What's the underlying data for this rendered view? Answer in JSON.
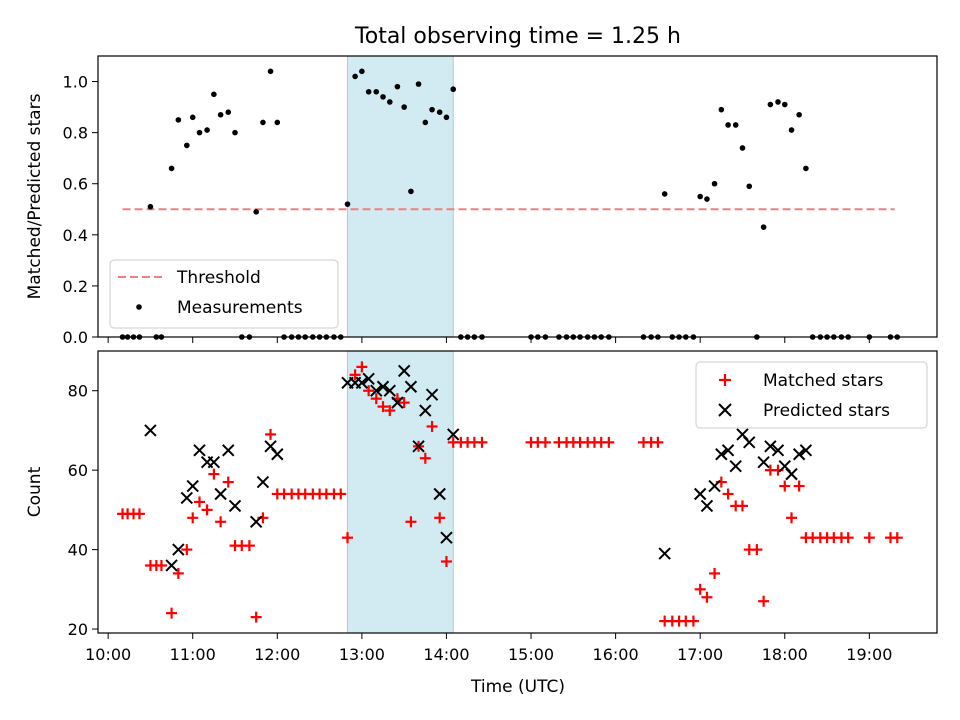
{
  "figure_title": "Total observing time = 1.25 h",
  "colors": {
    "threshold": "#f08080",
    "measurement": "#000000",
    "matched": "#ff0000",
    "predicted": "#000000",
    "shade": "#add8e6"
  },
  "chart_data": [
    {
      "type": "scatter",
      "ylabel": "Matched/Predicted stars",
      "xlabel": "",
      "xlim": [
        9.88,
        19.8
      ],
      "ylim": [
        0.0,
        1.1
      ],
      "x_ticks": [
        10,
        11,
        12,
        13,
        14,
        15,
        16,
        17,
        18,
        19
      ],
      "y_ticks": [
        0.0,
        0.2,
        0.4,
        0.6,
        0.8,
        1.0
      ],
      "y_tick_labels": [
        "0.0",
        "0.2",
        "0.4",
        "0.6",
        "0.8",
        "1.0"
      ],
      "shaded_span": [
        12.83,
        14.08
      ],
      "legend_position": "lower-left",
      "threshold": {
        "name": "Threshold",
        "value": 0.5,
        "x_range": [
          10.17,
          19.3
        ]
      },
      "series": [
        {
          "name": "Measurements",
          "x": [
            10.17,
            10.23,
            10.3,
            10.37,
            10.5,
            10.57,
            10.63,
            10.75,
            10.83,
            10.93,
            11.0,
            11.08,
            11.17,
            11.25,
            11.33,
            11.42,
            11.5,
            11.58,
            11.67,
            11.75,
            11.83,
            11.92,
            12.0,
            12.08,
            12.17,
            12.25,
            12.33,
            12.42,
            12.5,
            12.58,
            12.67,
            12.75,
            12.83,
            12.92,
            13.0,
            13.08,
            13.17,
            13.25,
            13.33,
            13.42,
            13.5,
            13.58,
            13.67,
            13.75,
            13.83,
            13.92,
            14.0,
            14.08,
            14.17,
            14.25,
            14.33,
            14.42,
            15.0,
            15.08,
            15.17,
            15.33,
            15.42,
            15.5,
            15.58,
            15.67,
            15.75,
            15.83,
            15.92,
            16.33,
            16.42,
            16.5,
            16.58,
            16.67,
            16.75,
            16.83,
            16.92,
            17.0,
            17.08,
            17.17,
            17.25,
            17.33,
            17.42,
            17.5,
            17.58,
            17.67,
            17.75,
            17.83,
            17.92,
            18.0,
            18.08,
            18.17,
            18.25,
            18.33,
            18.42,
            18.5,
            18.58,
            18.67,
            18.75,
            19.0,
            19.25,
            19.33
          ],
          "y": [
            0.0,
            0.0,
            0.0,
            0.0,
            0.51,
            0.0,
            0.0,
            0.66,
            0.85,
            0.75,
            0.86,
            0.8,
            0.81,
            0.95,
            0.87,
            0.88,
            0.8,
            0.0,
            0.0,
            0.49,
            0.84,
            1.04,
            0.84,
            0.0,
            0.0,
            0.0,
            0.0,
            0.0,
            0.0,
            0.0,
            0.0,
            0.0,
            0.52,
            1.02,
            1.04,
            0.96,
            0.96,
            0.94,
            0.92,
            0.98,
            0.9,
            0.57,
            0.99,
            0.84,
            0.89,
            0.88,
            0.86,
            0.97,
            0.0,
            0.0,
            0.0,
            0.0,
            0.0,
            0.0,
            0.0,
            0.0,
            0.0,
            0.0,
            0.0,
            0.0,
            0.0,
            0.0,
            0.0,
            0.0,
            0.0,
            0.0,
            0.56,
            0.0,
            0.0,
            0.0,
            0.0,
            0.55,
            0.54,
            0.6,
            0.89,
            0.83,
            0.83,
            0.74,
            0.59,
            0.0,
            0.43,
            0.91,
            0.92,
            0.91,
            0.81,
            0.87,
            0.66,
            0.0,
            0.0,
            0.0,
            0.0,
            0.0,
            0.0,
            0.0,
            0.0,
            0.0
          ]
        }
      ]
    },
    {
      "type": "scatter",
      "ylabel": "Count",
      "xlabel": "Time (UTC)",
      "xlim": [
        9.88,
        19.8
      ],
      "ylim": [
        19,
        90
      ],
      "x_ticks": [
        10,
        11,
        12,
        13,
        14,
        15,
        16,
        17,
        18,
        19
      ],
      "x_tick_labels": [
        "10:00",
        "11:00",
        "12:00",
        "13:00",
        "14:00",
        "15:00",
        "16:00",
        "17:00",
        "18:00",
        "19:00"
      ],
      "y_ticks": [
        20,
        40,
        60,
        80
      ],
      "y_tick_labels": [
        "20",
        "40",
        "60",
        "80"
      ],
      "shaded_span": [
        12.83,
        14.08
      ],
      "legend_position": "top-right",
      "series": [
        {
          "name": "Matched stars",
          "marker": "plus",
          "x": [
            10.17,
            10.23,
            10.3,
            10.37,
            10.5,
            10.57,
            10.63,
            10.75,
            10.83,
            10.93,
            11.0,
            11.08,
            11.17,
            11.25,
            11.33,
            11.42,
            11.5,
            11.58,
            11.67,
            11.75,
            11.83,
            11.92,
            12.0,
            12.08,
            12.17,
            12.25,
            12.33,
            12.42,
            12.5,
            12.58,
            12.67,
            12.75,
            12.83,
            12.92,
            13.0,
            13.08,
            13.17,
            13.25,
            13.33,
            13.42,
            13.5,
            13.58,
            13.67,
            13.75,
            13.83,
            13.92,
            14.0,
            14.08,
            14.17,
            14.25,
            14.33,
            14.42,
            15.0,
            15.08,
            15.17,
            15.33,
            15.42,
            15.5,
            15.58,
            15.67,
            15.75,
            15.83,
            15.92,
            16.33,
            16.42,
            16.5,
            16.58,
            16.67,
            16.75,
            16.83,
            16.92,
            17.0,
            17.08,
            17.17,
            17.25,
            17.33,
            17.42,
            17.5,
            17.58,
            17.67,
            17.75,
            17.83,
            17.92,
            18.0,
            18.08,
            18.17,
            18.25,
            18.33,
            18.42,
            18.5,
            18.58,
            18.67,
            18.75,
            19.0,
            19.25,
            19.33
          ],
          "y": [
            49,
            49,
            49,
            49,
            36,
            36,
            36,
            24,
            34,
            40,
            48,
            52,
            50,
            59,
            47,
            57,
            41,
            41,
            41,
            23,
            48,
            69,
            54,
            54,
            54,
            54,
            54,
            54,
            54,
            54,
            54,
            54,
            43,
            84,
            86,
            80,
            78,
            76,
            75,
            78,
            77,
            47,
            66,
            63,
            71,
            48,
            37,
            67,
            67,
            67,
            67,
            67,
            67,
            67,
            67,
            67,
            67,
            67,
            67,
            67,
            67,
            67,
            67,
            67,
            67,
            67,
            22,
            22,
            22,
            22,
            22,
            30,
            28,
            34,
            57,
            54,
            51,
            51,
            40,
            40,
            27,
            60,
            60,
            56,
            48,
            56,
            43,
            43,
            43,
            43,
            43,
            43,
            43,
            43,
            43,
            43
          ]
        },
        {
          "name": "Predicted stars",
          "marker": "x",
          "x": [
            10.5,
            10.75,
            10.83,
            10.93,
            11.0,
            11.08,
            11.17,
            11.25,
            11.33,
            11.42,
            11.5,
            11.75,
            11.83,
            11.92,
            12.0,
            12.83,
            12.92,
            13.0,
            13.08,
            13.17,
            13.25,
            13.33,
            13.42,
            13.5,
            13.58,
            13.67,
            13.75,
            13.83,
            13.92,
            14.0,
            14.08,
            16.58,
            17.0,
            17.08,
            17.17,
            17.25,
            17.33,
            17.42,
            17.5,
            17.58,
            17.75,
            17.83,
            17.92,
            18.0,
            18.08,
            18.17,
            18.25
          ],
          "y": [
            70,
            36,
            40,
            53,
            56,
            65,
            62,
            62,
            54,
            65,
            51,
            47,
            57,
            66,
            64,
            82,
            82,
            82,
            83,
            80,
            81,
            80,
            77,
            85,
            81,
            66,
            75,
            79,
            54,
            43,
            69,
            39,
            54,
            51,
            56,
            64,
            65,
            61,
            69,
            67,
            62,
            66,
            65,
            61,
            59,
            64,
            65
          ]
        }
      ]
    }
  ]
}
